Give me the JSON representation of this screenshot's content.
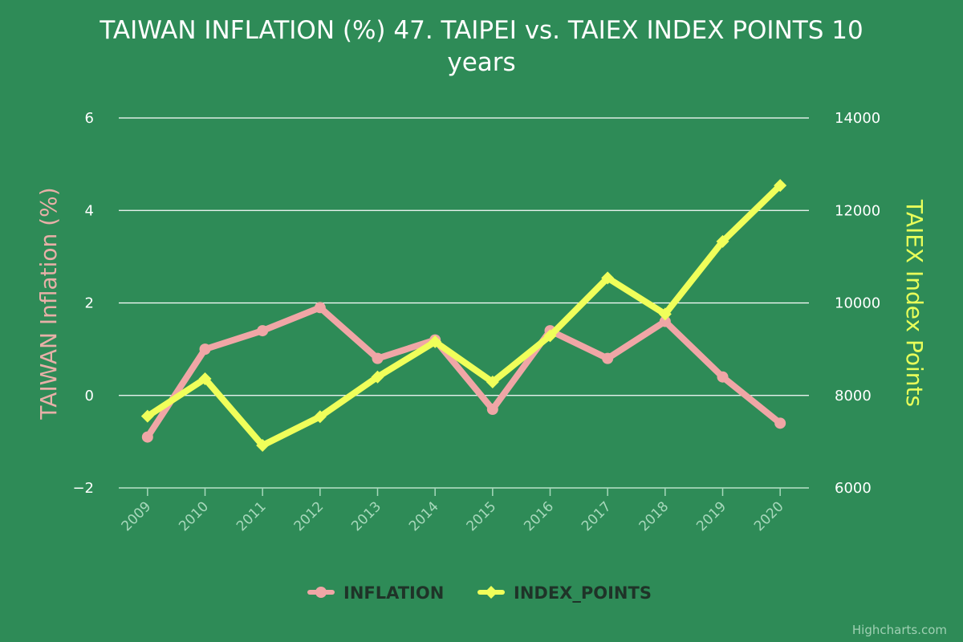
{
  "chart_data": {
    "type": "line",
    "title_line1": "TAIWAN INFLATION (%) 47. TAIPEI vs. TAIEX INDEX POINTS 10",
    "title_line2": "years",
    "categories": [
      "2009",
      "2010",
      "2011",
      "2012",
      "2013",
      "2014",
      "2015",
      "2016",
      "2017",
      "2018",
      "2019",
      "2020"
    ],
    "y_left": {
      "title": "TAIWAN Inflation (%)",
      "min": -2,
      "max": 6,
      "ticks": [
        6,
        4,
        2,
        0,
        -2
      ],
      "tick_labels": [
        "6",
        "4",
        "2",
        "0",
        "−2"
      ]
    },
    "y_right": {
      "title": "TAIEX Index Points",
      "min": 6000,
      "max": 14000,
      "ticks": [
        14000,
        12000,
        10000,
        8000,
        6000
      ],
      "tick_labels": [
        "14000",
        "12000",
        "10000",
        "8000",
        "6000"
      ]
    },
    "series": [
      {
        "name": "INFLATION",
        "axis": "left",
        "color": "#f0a6a6",
        "marker": "circle",
        "values": [
          -0.9,
          1.0,
          1.4,
          1.9,
          0.8,
          1.2,
          -0.3,
          1.4,
          0.8,
          1.6,
          0.4,
          -0.6
        ]
      },
      {
        "name": "INDEX_POINTS",
        "axis": "right",
        "color": "#f0ff5a",
        "marker": "diamond",
        "values": [
          7550,
          8360,
          6920,
          7540,
          8400,
          9160,
          8290,
          9290,
          10540,
          9760,
          11330,
          12540
        ]
      }
    ],
    "grid": true,
    "legend_position": "bottom-center",
    "credit": "Highcharts.com",
    "colors": {
      "background": "#2e8b57",
      "grid": "#ffffff",
      "left_axis_title": "#e8b0a8",
      "right_axis_title": "#e8ff5a"
    }
  }
}
